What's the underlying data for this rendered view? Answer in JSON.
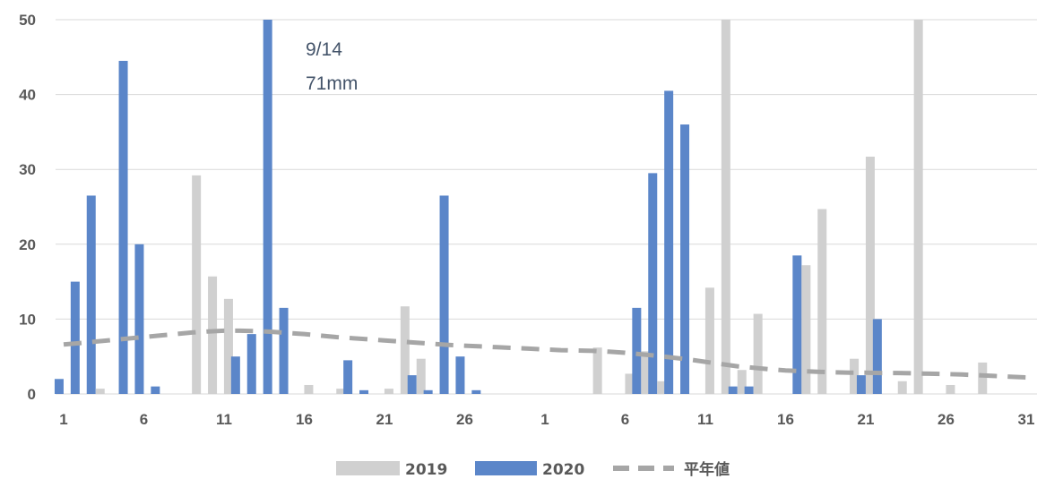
{
  "chart_data": {
    "type": "bar",
    "ylim": [
      0,
      50
    ],
    "y_ticks": [
      "0",
      "10",
      "20",
      "30",
      "40",
      "50"
    ],
    "x_tick_labels": [
      "1",
      "6",
      "11",
      "16",
      "21",
      "26",
      "1",
      "6",
      "11",
      "16",
      "21",
      "26",
      "31"
    ],
    "gridlines": "horizontal",
    "legend_position": "bottom",
    "colors": {
      "2019": "#d0d0d0",
      "2020": "#5b86c9",
      "平年値": "#a6a6a6"
    },
    "annotation": {
      "line1": "9/14",
      "line2": "71mm"
    },
    "months": [
      {
        "days": 30,
        "series": [
          {
            "name": "2019",
            "values": [
              0,
              0,
              0.7,
              0,
              0,
              0,
              0,
              0,
              29.2,
              15.7,
              12.7,
              0,
              0,
              0,
              0,
              1.2,
              0,
              0.7,
              0,
              0,
              0.7,
              11.7,
              4.7,
              0,
              0,
              0,
              0,
              0,
              0,
              0
            ]
          },
          {
            "name": "2020",
            "values": [
              2,
              15,
              26.5,
              0,
              44.5,
              20,
              1,
              0,
              0,
              0,
              0,
              5,
              8,
              71,
              11.5,
              0,
              0,
              0,
              4.5,
              0.5,
              0,
              0,
              2.5,
              0.5,
              26.5,
              5,
              0.5,
              0,
              0,
              0
            ]
          },
          {
            "name": "平年値",
            "values": [
              6.6,
              6.8,
              7.0,
              7.2,
              7.4,
              7.6,
              7.8,
              8.0,
              8.2,
              8.35,
              8.45,
              8.45,
              8.4,
              8.3,
              8.15,
              8.0,
              7.8,
              7.6,
              7.45,
              7.3,
              7.15,
              7.0,
              6.85,
              6.7,
              6.55,
              6.45,
              6.35,
              6.25,
              6.15,
              6.05
            ]
          }
        ]
      },
      {
        "days": 31,
        "series": [
          {
            "name": "2019",
            "values": [
              0,
              0,
              0,
              6.2,
              0,
              2.7,
              5.7,
              1.7,
              0,
              0,
              14.2,
              50,
              3.2,
              10.7,
              0,
              0,
              17.2,
              24.7,
              0,
              4.7,
              31.7,
              0,
              1.7,
              50,
              0,
              1.2,
              0,
              4.2,
              0,
              0,
              0
            ]
          },
          {
            "name": "2020",
            "values": [
              0,
              0,
              0,
              0,
              0,
              0,
              11.5,
              29.5,
              40.5,
              36,
              0,
              0,
              1,
              1,
              0,
              0,
              18.5,
              0,
              0,
              0,
              2.5,
              10,
              0,
              0,
              0,
              0,
              0,
              0,
              0,
              0,
              0
            ]
          },
          {
            "name": "平年値",
            "values": [
              5.95,
              5.85,
              5.8,
              5.75,
              5.65,
              5.5,
              5.3,
              5.1,
              4.85,
              4.6,
              4.3,
              4.0,
              3.7,
              3.5,
              3.3,
              3.15,
              3.05,
              2.95,
              2.9,
              2.85,
              2.85,
              2.8,
              2.8,
              2.75,
              2.7,
              2.65,
              2.6,
              2.5,
              2.4,
              2.3,
              2.2
            ]
          }
        ]
      }
    ]
  }
}
